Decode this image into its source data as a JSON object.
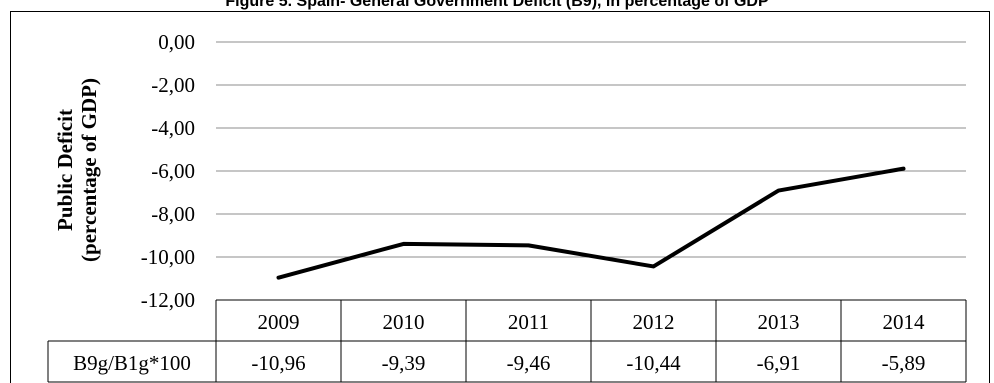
{
  "title": "Figure 5. Spain- General Government Deficit (B9), in percentage of GDP",
  "chart_data": {
    "type": "line",
    "title": "Figure 5. Spain- General Government Deficit (B9), in percentage of GDP",
    "ylabel_line1": "Public Deficit",
    "ylabel_line2": "(percentage of GDP)",
    "xlabel": "",
    "categories": [
      "2009",
      "2010",
      "2011",
      "2012",
      "2013",
      "2014"
    ],
    "series": [
      {
        "name": "B9g/B1g*100",
        "values": [
          -10.96,
          -9.39,
          -9.46,
          -10.44,
          -6.91,
          -5.89
        ]
      }
    ],
    "value_labels": [
      "-10,96",
      "-9,39",
      "-9,46",
      "-10,44",
      "-6,91",
      "-5,89"
    ],
    "yticks": [
      "0,00",
      "-2,00",
      "-4,00",
      "-6,00",
      "-8,00",
      "-10,00",
      "-12,00"
    ],
    "ylim": [
      -12,
      0
    ],
    "grid": true,
    "legend": "data table below chart",
    "line_color": "#000000"
  }
}
